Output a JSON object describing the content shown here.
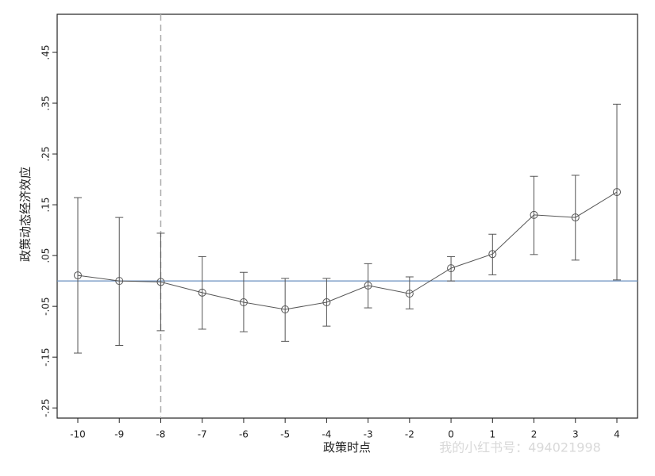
{
  "chart_data": {
    "type": "errorbar-line",
    "categories": [
      "-10",
      "-9",
      "-8",
      "-7",
      "-6",
      "-5",
      "-4",
      "-3",
      "-2",
      "0",
      "1",
      "2",
      "3",
      "4"
    ],
    "series": [
      {
        "color": "#555555",
        "values": [
          0.011,
          0.0,
          -0.002,
          -0.023,
          -0.042,
          -0.056,
          -0.042,
          -0.009,
          -0.025,
          0.025,
          0.053,
          0.13,
          0.125,
          0.175
        ],
        "ci_low": [
          -0.142,
          -0.127,
          -0.098,
          -0.095,
          -0.1,
          -0.119,
          -0.089,
          -0.053,
          -0.055,
          0.0,
          0.012,
          0.052,
          0.041,
          0.002
        ],
        "ci_high": [
          0.164,
          0.125,
          0.094,
          0.048,
          0.017,
          0.005,
          0.005,
          0.034,
          0.008,
          0.048,
          0.092,
          0.206,
          0.208,
          0.348
        ]
      }
    ],
    "xlabel": "政策时点",
    "ylabel": "政策动态经济效应",
    "ylim": [
      -0.27,
      0.525
    ],
    "yticks": [
      {
        "value": -0.25,
        "label": "-.25"
      },
      {
        "value": -0.15,
        "label": "-.15"
      },
      {
        "value": -0.05,
        "label": "-.05"
      },
      {
        "value": 0.05,
        "label": ".05"
      },
      {
        "value": 0.15,
        "label": ".15"
      },
      {
        "value": 0.25,
        "label": ".25"
      },
      {
        "value": 0.35,
        "label": ".35"
      },
      {
        "value": 0.45,
        "label": ".45"
      }
    ],
    "hline": 0,
    "hline_color": "#6a8fbf",
    "vline_category": "-8",
    "vline_color": "#aaaaaa",
    "watermark": "我的小红书号：494021998"
  }
}
